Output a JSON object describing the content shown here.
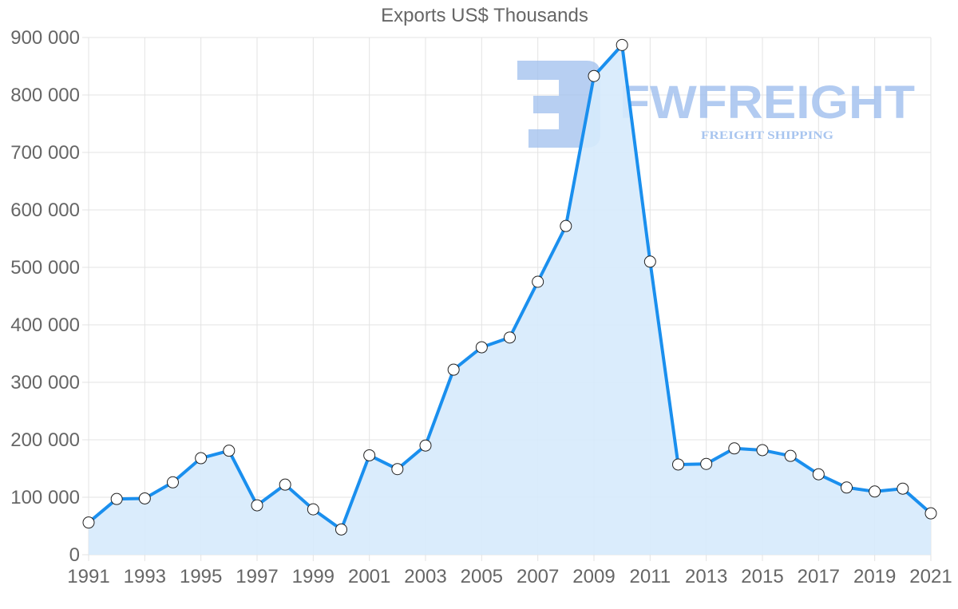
{
  "chart_data": {
    "type": "area",
    "title": "Exports US$ Thousands",
    "xlabel": "",
    "ylabel": "",
    "ylim": [
      0,
      900000
    ],
    "grid": true,
    "legend": "none",
    "x": [
      1991,
      1992,
      1993,
      1994,
      1995,
      1996,
      1997,
      1998,
      1999,
      2000,
      2001,
      2002,
      2003,
      2004,
      2005,
      2006,
      2007,
      2008,
      2009,
      2010,
      2011,
      2012,
      2013,
      2014,
      2015,
      2016,
      2017,
      2018,
      2019,
      2020,
      2021
    ],
    "series": [
      {
        "name": "Exports US$ Thousands",
        "values": [
          56000,
          97000,
          98000,
          126000,
          168000,
          181000,
          86000,
          122000,
          79000,
          44000,
          173000,
          149000,
          190000,
          322000,
          361000,
          378000,
          475000,
          572000,
          833000,
          887000,
          510000,
          157000,
          158000,
          185000,
          182000,
          172000,
          140000,
          117000,
          110000,
          115000,
          72000
        ]
      }
    ],
    "y_ticks": [
      "0",
      "100 000",
      "200 000",
      "300 000",
      "400 000",
      "500 000",
      "600 000",
      "700 000",
      "800 000",
      "900 000"
    ],
    "x_ticks": [
      "1991",
      "1993",
      "1995",
      "1997",
      "1999",
      "2001",
      "2003",
      "2005",
      "2007",
      "2009",
      "2011",
      "2013",
      "2015",
      "2017",
      "2019",
      "2021"
    ]
  },
  "colors": {
    "line": "#1a8fee",
    "fill": "#d6eafc",
    "grid": "#e3e3e3",
    "text": "#666666",
    "watermark": "#9fbfee"
  },
  "watermark": {
    "brand": "FWFREIGHT",
    "tagline": "FREIGHT SHIPPING"
  }
}
